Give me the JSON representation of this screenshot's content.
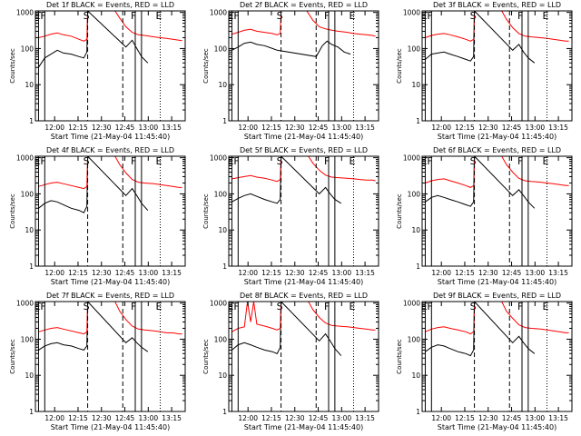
{
  "chart_data": [
    {
      "type": "line",
      "title": "Det 1f BLACK = Events, RED = LLD",
      "xlabel": "Start Time (21-May-04 11:45:40)",
      "ylabel": "Counts/sec",
      "x_ticks": [
        "12:00",
        "12:15",
        "12:30",
        "12:45",
        "13:00",
        "13:15"
      ],
      "y_ticks": [
        "1",
        "10",
        "100",
        "1000"
      ],
      "ylim": [
        1,
        1100
      ],
      "yscale": "log",
      "xlim_minutes_after_start": [
        2,
        98
      ],
      "markers": [
        "E",
        "F",
        "S",
        "F",
        "E"
      ],
      "series": [
        {
          "color": "#000000",
          "x": [
            4,
            8,
            12,
            16,
            20,
            25,
            30,
            33,
            35,
            35.5,
            60,
            64,
            67,
            70,
            74
          ],
          "y": [
            30,
            55,
            70,
            90,
            75,
            70,
            60,
            55,
            80,
            1100,
            110,
            170,
            100,
            60,
            40
          ]
        },
        {
          "color": "#ff0000",
          "x": [
            4,
            8,
            12,
            16,
            20,
            25,
            30,
            33,
            35,
            35.5,
            53,
            56,
            60,
            64,
            68,
            72,
            78,
            82,
            86,
            90,
            94,
            96
          ],
          "y": [
            200,
            220,
            250,
            270,
            240,
            220,
            180,
            160,
            180,
            1100,
            1100,
            700,
            400,
            280,
            240,
            230,
            210,
            200,
            190,
            180,
            170,
            165
          ]
        }
      ]
    },
    {
      "type": "line",
      "title": "Det 2f BLACK = Events, RED = LLD",
      "xlabel": "Start Time (21-May-04 11:45:40)",
      "ylabel": "Counts/sec",
      "x_ticks": [
        "12:00",
        "12:15",
        "12:30",
        "12:45",
        "13:00",
        "13:15"
      ],
      "y_ticks": [
        "1",
        "10",
        "100",
        "1000"
      ],
      "ylim": [
        1,
        1100
      ],
      "yscale": "log",
      "xlim_minutes_after_start": [
        2,
        98
      ],
      "markers": [
        "E",
        "F",
        "S",
        "F",
        "E"
      ],
      "series": [
        {
          "color": "#000000",
          "x": [
            4,
            8,
            12,
            16,
            20,
            25,
            30,
            33,
            58,
            62,
            65,
            68,
            72,
            76,
            80
          ],
          "y": [
            90,
            110,
            140,
            150,
            130,
            120,
            100,
            90,
            60,
            120,
            160,
            130,
            110,
            80,
            70
          ]
        },
        {
          "color": "#ff0000",
          "x": [
            4,
            8,
            12,
            16,
            20,
            25,
            30,
            33,
            35,
            35.5,
            52,
            56,
            60,
            64,
            68,
            72,
            78,
            82,
            86,
            90,
            94,
            96
          ],
          "y": [
            250,
            280,
            320,
            340,
            300,
            280,
            260,
            240,
            260,
            1100,
            1100,
            600,
            400,
            350,
            320,
            300,
            280,
            260,
            250,
            240,
            230,
            220
          ]
        }
      ]
    },
    {
      "type": "line",
      "title": "Det 3f BLACK = Events, RED = LLD",
      "xlabel": "Start Time (21-May-04 11:45:40)",
      "ylabel": "Counts/sec",
      "x_ticks": [
        "12:00",
        "12:15",
        "12:30",
        "12:45",
        "13:00",
        "13:15"
      ],
      "y_ticks": [
        "1",
        "10",
        "100",
        "1000"
      ],
      "ylim": [
        1,
        1100
      ],
      "yscale": "log",
      "xlim_minutes_after_start": [
        2,
        98
      ],
      "markers": [
        "E",
        "F",
        "S",
        "F",
        "E"
      ],
      "series": [
        {
          "color": "#000000",
          "x": [
            4,
            8,
            12,
            16,
            20,
            25,
            30,
            33,
            35,
            35.5,
            60,
            64,
            67,
            70,
            74
          ],
          "y": [
            50,
            70,
            75,
            80,
            70,
            60,
            50,
            45,
            60,
            1100,
            90,
            130,
            80,
            55,
            40
          ]
        },
        {
          "color": "#ff0000",
          "x": [
            4,
            8,
            12,
            16,
            20,
            25,
            30,
            33,
            35,
            35.5,
            53,
            56,
            60,
            64,
            68,
            72,
            78,
            82,
            86,
            90,
            94,
            96
          ],
          "y": [
            200,
            230,
            250,
            260,
            240,
            210,
            180,
            160,
            180,
            1100,
            1100,
            650,
            380,
            260,
            220,
            210,
            200,
            190,
            180,
            170,
            160,
            160
          ]
        }
      ]
    },
    {
      "type": "line",
      "title": "Det 4f BLACK = Events, RED = LLD",
      "xlabel": "Start Time (21-May-04 11:45:40)",
      "ylabel": "Counts/sec",
      "x_ticks": [
        "12:00",
        "12:15",
        "12:30",
        "12:45",
        "13:00",
        "13:15"
      ],
      "y_ticks": [
        "1",
        "10",
        "100",
        "1000"
      ],
      "ylim": [
        1,
        1100
      ],
      "yscale": "log",
      "xlim_minutes_after_start": [
        2,
        98
      ],
      "markers": [
        "E",
        "F",
        "S",
        "F",
        "E"
      ],
      "series": [
        {
          "color": "#000000",
          "x": [
            4,
            8,
            12,
            16,
            20,
            25,
            30,
            33,
            35,
            35.5,
            60,
            64,
            67,
            70,
            74
          ],
          "y": [
            40,
            55,
            65,
            60,
            50,
            40,
            35,
            30,
            45,
            1100,
            90,
            140,
            90,
            55,
            35
          ]
        },
        {
          "color": "#ff0000",
          "x": [
            4,
            8,
            12,
            16,
            20,
            25,
            30,
            33,
            35,
            35.5,
            53,
            56,
            60,
            64,
            68,
            72,
            78,
            82,
            86,
            90,
            94,
            96
          ],
          "y": [
            160,
            180,
            200,
            210,
            190,
            170,
            150,
            140,
            160,
            1100,
            1100,
            650,
            380,
            250,
            210,
            200,
            190,
            180,
            170,
            160,
            150,
            150
          ]
        }
      ]
    },
    {
      "type": "line",
      "title": "Det 5f BLACK = Events, RED = LLD",
      "xlabel": "Start Time (21-May-04 11:45:40)",
      "ylabel": "Counts/sec",
      "x_ticks": [
        "12:00",
        "12:15",
        "12:30",
        "12:45",
        "13:00",
        "13:15"
      ],
      "y_ticks": [
        "1",
        "10",
        "100",
        "1000"
      ],
      "ylim": [
        1,
        1100
      ],
      "yscale": "log",
      "xlim_minutes_after_start": [
        2,
        98
      ],
      "markers": [
        "E",
        "F",
        "S",
        "F",
        "E"
      ],
      "series": [
        {
          "color": "#000000",
          "x": [
            4,
            8,
            12,
            16,
            20,
            25,
            30,
            33,
            35,
            35.5,
            60,
            64,
            67,
            70,
            74
          ],
          "y": [
            60,
            75,
            90,
            100,
            85,
            70,
            60,
            55,
            70,
            1100,
            100,
            150,
            100,
            70,
            55
          ]
        },
        {
          "color": "#ff0000",
          "x": [
            4,
            8,
            12,
            16,
            20,
            25,
            30,
            33,
            35,
            35.5,
            53,
            56,
            60,
            64,
            68,
            72,
            78,
            82,
            86,
            90,
            94,
            96
          ],
          "y": [
            260,
            280,
            300,
            320,
            290,
            270,
            240,
            220,
            250,
            1100,
            1100,
            700,
            450,
            330,
            290,
            280,
            270,
            260,
            250,
            240,
            240,
            230
          ]
        }
      ]
    },
    {
      "type": "line",
      "title": "Det 6f BLACK = Events, RED = LLD",
      "xlabel": "Start Time (21-May-04 11:45:40)",
      "ylabel": "Counts/sec",
      "x_ticks": [
        "12:00",
        "12:15",
        "12:30",
        "12:45",
        "13:00",
        "13:15"
      ],
      "y_ticks": [
        "1",
        "10",
        "100",
        "1000"
      ],
      "ylim": [
        1,
        1100
      ],
      "yscale": "log",
      "xlim_minutes_after_start": [
        2,
        98
      ],
      "markers": [
        "E",
        "F",
        "S",
        "F",
        "E"
      ],
      "series": [
        {
          "color": "#000000",
          "x": [
            4,
            8,
            12,
            16,
            20,
            25,
            30,
            33,
            35,
            35.5,
            60,
            64,
            67,
            70,
            74
          ],
          "y": [
            60,
            80,
            90,
            80,
            70,
            60,
            50,
            45,
            60,
            1100,
            90,
            130,
            90,
            60,
            40
          ]
        },
        {
          "color": "#ff0000",
          "x": [
            4,
            8,
            12,
            16,
            20,
            25,
            30,
            33,
            35,
            35.5,
            53,
            56,
            60,
            64,
            68,
            72,
            78,
            82,
            86,
            90,
            94,
            96
          ],
          "y": [
            200,
            230,
            250,
            260,
            230,
            200,
            170,
            150,
            170,
            1100,
            1100,
            650,
            400,
            270,
            230,
            220,
            210,
            200,
            190,
            180,
            170,
            170
          ]
        }
      ]
    },
    {
      "type": "line",
      "title": "Det 7f BLACK = Events, RED = LLD",
      "xlabel": "Start Time (21-May-04 11:45:40)",
      "ylabel": "Counts/sec",
      "x_ticks": [
        "12:00",
        "12:15",
        "12:30",
        "12:45",
        "13:00",
        "13:15"
      ],
      "y_ticks": [
        "1",
        "10",
        "100",
        "1000"
      ],
      "ylim": [
        1,
        1100
      ],
      "yscale": "log",
      "xlim_minutes_after_start": [
        2,
        98
      ],
      "markers": [
        "E",
        "F",
        "S",
        "F",
        "E"
      ],
      "series": [
        {
          "color": "#000000",
          "x": [
            4,
            8,
            12,
            16,
            20,
            25,
            30,
            33,
            35,
            35.5,
            60,
            64,
            67,
            70,
            74
          ],
          "y": [
            50,
            65,
            75,
            80,
            70,
            65,
            55,
            50,
            65,
            1100,
            80,
            110,
            80,
            60,
            45
          ]
        },
        {
          "color": "#ff0000",
          "x": [
            4,
            8,
            12,
            16,
            20,
            25,
            30,
            33,
            35,
            35.5,
            53,
            56,
            60,
            64,
            68,
            72,
            78,
            82,
            86,
            90,
            94,
            96
          ],
          "y": [
            160,
            180,
            200,
            210,
            190,
            170,
            150,
            140,
            160,
            1100,
            1100,
            600,
            350,
            230,
            190,
            180,
            170,
            160,
            150,
            150,
            140,
            140
          ]
        }
      ]
    },
    {
      "type": "line",
      "title": "Det 8f BLACK = Events, RED = LLD",
      "xlabel": "Start Time (21-May-04 11:45:40)",
      "ylabel": "Counts/sec",
      "x_ticks": [
        "12:00",
        "12:15",
        "12:30",
        "12:45",
        "13:00",
        "13:15"
      ],
      "y_ticks": [
        "1",
        "10",
        "100",
        "1000"
      ],
      "ylim": [
        1,
        1100
      ],
      "yscale": "log",
      "xlim_minutes_after_start": [
        2,
        98
      ],
      "markers": [
        "E",
        "F",
        "S",
        "F",
        "E"
      ],
      "series": [
        {
          "color": "#000000",
          "x": [
            4,
            8,
            12,
            16,
            20,
            25,
            30,
            33,
            35,
            35.5,
            60,
            64,
            67,
            70,
            74
          ],
          "y": [
            50,
            70,
            80,
            70,
            60,
            50,
            45,
            40,
            60,
            1100,
            90,
            140,
            90,
            55,
            35
          ]
        },
        {
          "color": "#ff0000",
          "x": [
            4,
            8,
            12,
            14,
            16,
            18,
            20,
            25,
            30,
            33,
            35,
            35.5,
            53,
            56,
            60,
            64,
            68,
            72,
            78,
            82,
            86,
            90,
            94,
            96
          ],
          "y": [
            160,
            200,
            220,
            1100,
            300,
            1100,
            260,
            230,
            200,
            180,
            200,
            1100,
            1100,
            650,
            400,
            280,
            240,
            230,
            220,
            210,
            200,
            190,
            180,
            180
          ]
        }
      ]
    },
    {
      "type": "line",
      "title": "Det 9f BLACK = Events, RED = LLD",
      "xlabel": "Start Time (21-May-04 11:45:40)",
      "ylabel": "Counts/sec",
      "x_ticks": [
        "12:00",
        "12:15",
        "12:30",
        "12:45",
        "13:00",
        "13:15"
      ],
      "y_ticks": [
        "1",
        "10",
        "100",
        "1000"
      ],
      "ylim": [
        1,
        1100
      ],
      "yscale": "log",
      "xlim_minutes_after_start": [
        2,
        98
      ],
      "markers": [
        "E",
        "F",
        "S",
        "F",
        "E"
      ],
      "series": [
        {
          "color": "#000000",
          "x": [
            4,
            8,
            12,
            16,
            20,
            25,
            30,
            33,
            35,
            35.5,
            60,
            64,
            67,
            70,
            74
          ],
          "y": [
            45,
            60,
            70,
            65,
            55,
            45,
            40,
            35,
            50,
            1100,
            80,
            120,
            80,
            55,
            40
          ]
        },
        {
          "color": "#ff0000",
          "x": [
            4,
            8,
            12,
            16,
            20,
            25,
            30,
            33,
            35,
            35.5,
            53,
            56,
            60,
            64,
            68,
            72,
            78,
            82,
            86,
            90,
            94,
            96
          ],
          "y": [
            160,
            190,
            210,
            220,
            200,
            180,
            160,
            140,
            160,
            1100,
            1100,
            600,
            380,
            250,
            210,
            200,
            190,
            180,
            170,
            160,
            150,
            150
          ]
        }
      ]
    }
  ]
}
